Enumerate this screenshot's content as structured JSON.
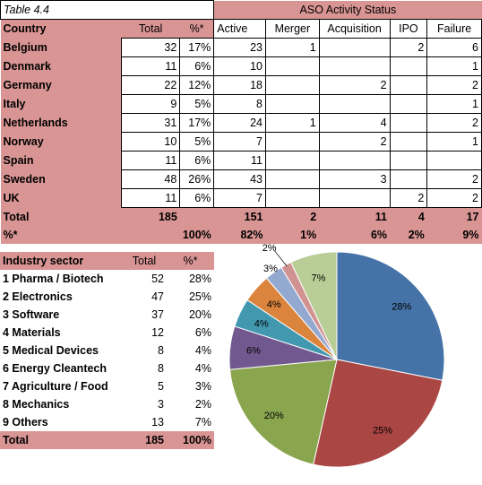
{
  "table1": {
    "caption": "Table 4.4",
    "group_header": "ASO Activity Status",
    "headers": [
      "Country",
      "Total",
      "%*",
      "Active",
      "Merger",
      "Acquisition",
      "IPO",
      "Failure"
    ],
    "rows": [
      [
        "Belgium",
        "32",
        "17%",
        "23",
        "1",
        "",
        "2",
        "6"
      ],
      [
        "Denmark",
        "11",
        "6%",
        "10",
        "",
        "",
        "",
        "1"
      ],
      [
        "Germany",
        "22",
        "12%",
        "18",
        "",
        "2",
        "",
        "2"
      ],
      [
        "Italy",
        "9",
        "5%",
        "8",
        "",
        "",
        "",
        "1"
      ],
      [
        "Netherlands",
        "31",
        "17%",
        "24",
        "1",
        "4",
        "",
        "2"
      ],
      [
        "Norway",
        "10",
        "5%",
        "7",
        "",
        "2",
        "",
        "1"
      ],
      [
        "Spain",
        "11",
        "6%",
        "11",
        "",
        "",
        "",
        ""
      ],
      [
        "Sweden",
        "48",
        "26%",
        "43",
        "",
        "3",
        "",
        "2"
      ],
      [
        "UK",
        "11",
        "6%",
        "7",
        "",
        "",
        "2",
        "2"
      ]
    ],
    "total_row": [
      "Total",
      "185",
      "",
      "151",
      "2",
      "11",
      "4",
      "17"
    ],
    "pct_row": [
      "%*",
      "",
      "100%",
      "82%",
      "1%",
      "6%",
      "2%",
      "9%"
    ]
  },
  "table2": {
    "headers": [
      "Industry sector",
      "Total",
      "%*"
    ],
    "rows": [
      [
        "1 Pharma / Biotech",
        "52",
        "28%"
      ],
      [
        "2 Electronics",
        "47",
        "25%"
      ],
      [
        "3 Software",
        "37",
        "20%"
      ],
      [
        "4 Materials",
        "12",
        "6%"
      ],
      [
        "5 Medical Devices",
        "8",
        "4%"
      ],
      [
        "6 Energy Cleantech",
        "8",
        "4%"
      ],
      [
        "7 Agriculture / Food",
        "5",
        "3%"
      ],
      [
        "8 Mechanics",
        "3",
        "2%"
      ],
      [
        "9 Others",
        "13",
        "7%"
      ]
    ],
    "total_row": [
      "Total",
      "185",
      "100%"
    ]
  },
  "chart_data": {
    "type": "pie",
    "categories": [
      "1 Pharma / Biotech",
      "2 Electronics",
      "3 Software",
      "4 Materials",
      "5 Medical Devices",
      "6 Energy Cleantech",
      "7 Agriculture / Food",
      "8 Mechanics",
      "9 Others"
    ],
    "values": [
      52,
      47,
      37,
      12,
      8,
      8,
      5,
      3,
      13
    ],
    "labels": [
      "28%",
      "25%",
      "20%",
      "6%",
      "4%",
      "4%",
      "3%",
      "2%",
      "7%"
    ],
    "colors": [
      "#4572a7",
      "#aa4643",
      "#89a54e",
      "#71588f",
      "#4198af",
      "#db843d",
      "#93a9cf",
      "#d19392",
      "#b9cd96"
    ],
    "start": "12 o'clock, clockwise"
  }
}
